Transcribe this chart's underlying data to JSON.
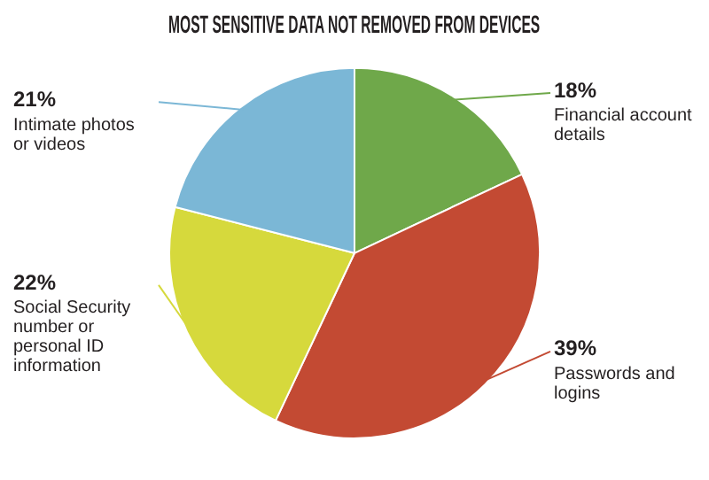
{
  "chart_data": {
    "type": "pie",
    "title": "MOST SENSITIVE DATA NOT REMOVED FROM DEVICES",
    "categories": [
      "Financial account details",
      "Passwords and logins",
      "Social Security number or personal ID information",
      "Intimate photos or videos"
    ],
    "values": [
      18,
      39,
      22,
      21
    ],
    "colors": [
      "#6fa84a",
      "#c34a33",
      "#d6d93c",
      "#7bb7d6"
    ],
    "value_labels": [
      "18%",
      "39%",
      "22%",
      "21%"
    ],
    "legend": false
  }
}
